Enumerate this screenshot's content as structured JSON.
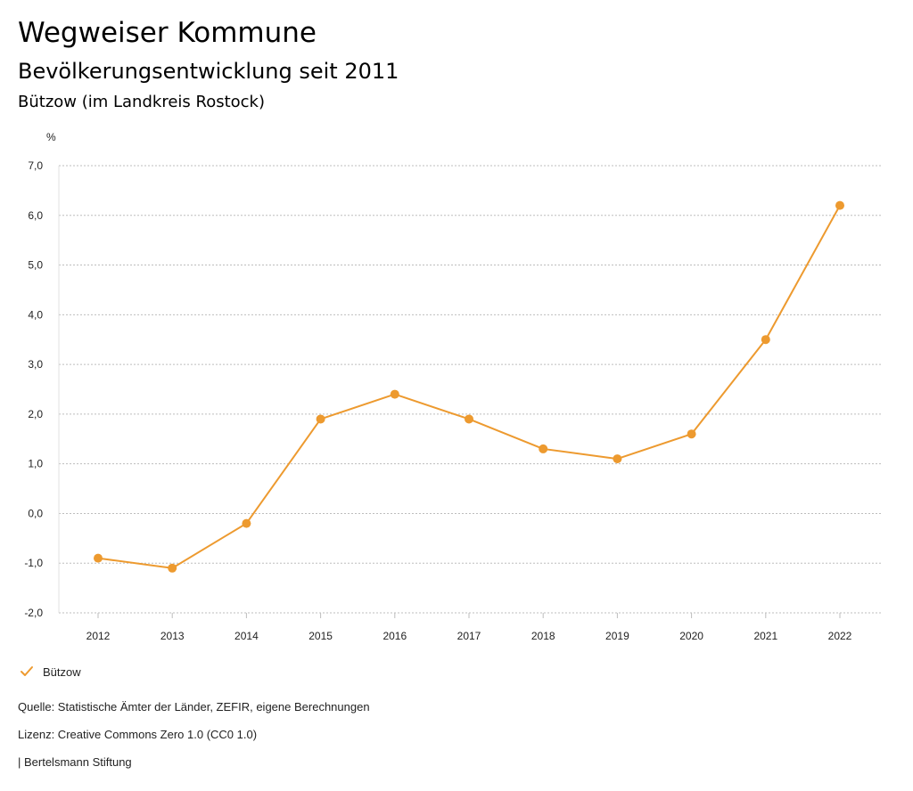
{
  "header": {
    "title": "Wegweiser Kommune",
    "subtitle": "Bevölkerungsentwicklung seit 2011",
    "location": "Bützow (im Landkreis Rostock)"
  },
  "chart_data": {
    "type": "line",
    "x": [
      "2012",
      "2013",
      "2014",
      "2015",
      "2016",
      "2017",
      "2018",
      "2019",
      "2020",
      "2021",
      "2022"
    ],
    "series": [
      {
        "name": "Bützow",
        "values": [
          -0.9,
          -1.1,
          -0.2,
          1.9,
          2.4,
          1.9,
          1.3,
          1.1,
          1.6,
          3.5,
          6.2
        ],
        "color": "#ed9a2f"
      }
    ],
    "ylabel": "%",
    "ylim": [
      -2.0,
      7.0
    ],
    "yticks": [
      "-2,0",
      "-1,0",
      "0,0",
      "1,0",
      "2,0",
      "3,0",
      "4,0",
      "5,0",
      "6,0",
      "7,0"
    ],
    "grid": true,
    "legend_position": "bottom-left"
  },
  "legend": {
    "icon": "checkmark-icon"
  },
  "footer": {
    "source": "Quelle: Statistische Ämter der Länder, ZEFIR, eigene Berechnungen",
    "license": "Lizenz: Creative Commons Zero 1.0 (CC0 1.0)",
    "publisher": "| Bertelsmann Stiftung"
  }
}
